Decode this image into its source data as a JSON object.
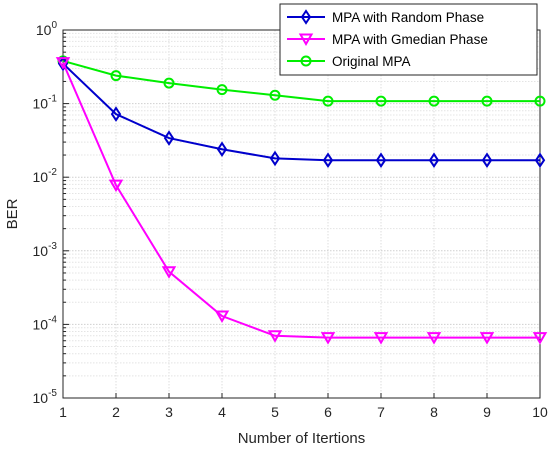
{
  "chart_data": {
    "type": "line",
    "title": "",
    "xlabel": "Number of Itertions",
    "ylabel": "BER",
    "x": [
      1,
      2,
      3,
      4,
      5,
      6,
      7,
      8,
      9,
      10
    ],
    "xlim": [
      1,
      10
    ],
    "ylim": [
      1e-05,
      1
    ],
    "yscale": "log",
    "x_ticks": [
      "1",
      "2",
      "3",
      "4",
      "5",
      "6",
      "7",
      "8",
      "9",
      "10"
    ],
    "y_ticks": [
      {
        "value": 1,
        "base": "10",
        "exp": "0"
      },
      {
        "value": 0.1,
        "base": "10",
        "exp": "-1"
      },
      {
        "value": 0.01,
        "base": "10",
        "exp": "-2"
      },
      {
        "value": 0.001,
        "base": "10",
        "exp": "-3"
      },
      {
        "value": 0.0001,
        "base": "10",
        "exp": "-4"
      },
      {
        "value": 1e-05,
        "base": "10",
        "exp": "-5"
      }
    ],
    "grid": true,
    "legend_position": "top-right",
    "series": [
      {
        "name": "MPA with Random Phase",
        "color": "#0000cc",
        "marker": "diamond",
        "values": [
          0.35,
          0.072,
          0.034,
          0.024,
          0.018,
          0.017,
          0.017,
          0.017,
          0.017,
          0.017
        ]
      },
      {
        "name": "MPA with Gmedian Phase",
        "color": "#ff00ff",
        "marker": "triangle-down",
        "values": [
          0.36,
          0.0078,
          0.00052,
          0.00013,
          7e-05,
          6.6e-05,
          6.6e-05,
          6.6e-05,
          6.6e-05,
          6.6e-05
        ]
      },
      {
        "name": "Original MPA",
        "color": "#00ee00",
        "marker": "circle",
        "values": [
          0.38,
          0.24,
          0.19,
          0.155,
          0.13,
          0.108,
          0.108,
          0.108,
          0.108,
          0.108
        ]
      }
    ]
  }
}
